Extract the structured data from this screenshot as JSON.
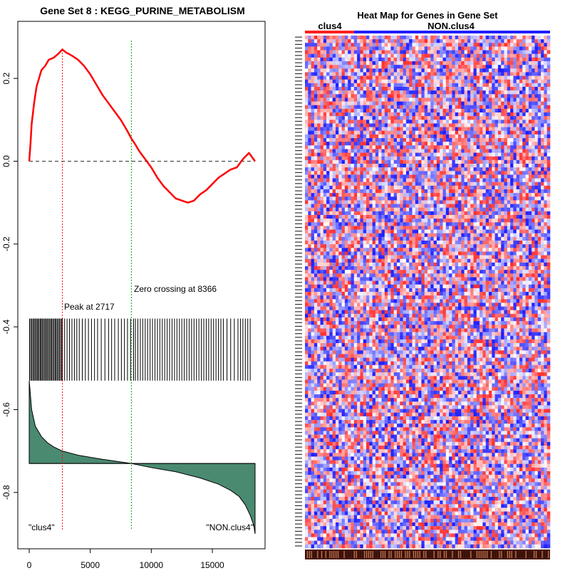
{
  "chart_data": [
    {
      "type": "line",
      "title": "Gene Set  8 : KEGG_PURINE_METABOLISM",
      "xlim": [
        0,
        18500
      ],
      "ylim": [
        -0.9,
        0.3
      ],
      "x_ticks": [
        0,
        5000,
        10000,
        15000
      ],
      "x_tick_labels": [
        "0",
        "5000",
        "10000",
        "15000"
      ],
      "y_ticks": [
        0.2,
        0.0,
        -0.2,
        -0.4,
        -0.6,
        -0.8
      ],
      "y_tick_labels": [
        "0.2",
        "0.0",
        "-0.2",
        "-0.4",
        "-0.6",
        "-0.8"
      ],
      "running_es": {
        "color": "#ff0000",
        "x": [
          0,
          100,
          200,
          400,
          600,
          800,
          1000,
          1300,
          1600,
          2000,
          2400,
          2717,
          3000,
          3500,
          4000,
          4500,
          5000,
          5500,
          6000,
          6500,
          7000,
          7500,
          8000,
          8366,
          8700,
          9000,
          9500,
          10000,
          10500,
          11000,
          11500,
          12000,
          12500,
          13000,
          13500,
          14000,
          14500,
          15000,
          15500,
          16000,
          16500,
          17000,
          17500,
          18000,
          18500
        ],
        "y": [
          0.0,
          0.04,
          0.09,
          0.14,
          0.18,
          0.2,
          0.22,
          0.23,
          0.245,
          0.25,
          0.26,
          0.27,
          0.263,
          0.255,
          0.245,
          0.23,
          0.21,
          0.185,
          0.16,
          0.14,
          0.12,
          0.1,
          0.075,
          0.055,
          0.04,
          0.025,
          0.005,
          -0.015,
          -0.04,
          -0.06,
          -0.075,
          -0.09,
          -0.095,
          -0.1,
          -0.095,
          -0.08,
          -0.07,
          -0.055,
          -0.04,
          -0.03,
          -0.02,
          -0.015,
          0.005,
          0.02,
          0.0
        ]
      },
      "baseline": 0.0,
      "peak": {
        "x": 2717,
        "label": "Peak at 2717",
        "color": "#ff0000"
      },
      "zero_crossing": {
        "x": 8366,
        "label": "Zero crossing at 8366",
        "color": "#00aa00"
      },
      "hits": {
        "y_range": [
          -0.53,
          -0.38
        ],
        "x": [
          30,
          120,
          210,
          300,
          390,
          470,
          560,
          650,
          720,
          810,
          900,
          980,
          1060,
          1150,
          1240,
          1330,
          1410,
          1500,
          1590,
          1680,
          1770,
          1850,
          1940,
          2030,
          2120,
          2200,
          2290,
          2380,
          2470,
          2560,
          2650,
          2717,
          2900,
          3100,
          3300,
          3500,
          3700,
          3900,
          4100,
          4350,
          4600,
          4850,
          5100,
          5350,
          5600,
          5900,
          6200,
          6500,
          6750,
          7000,
          7300,
          7550,
          7800,
          8050,
          8300,
          8550,
          8700,
          8900,
          9100,
          9300,
          9500,
          9700,
          9900,
          10100,
          10300,
          10500,
          10700,
          10900,
          11100,
          11300,
          11500,
          11700,
          11900,
          12100,
          12300,
          12500,
          12700,
          12900,
          13100,
          13300,
          13500,
          13700,
          13900,
          14100,
          14300,
          14500,
          14700,
          14900,
          15100,
          15300,
          15500,
          15700,
          15900,
          16200,
          16500,
          16800,
          17100,
          17300,
          17500,
          17700,
          17900,
          18100
        ]
      },
      "ranked_metric": {
        "fill": "#4a8a70",
        "baseline": -0.73,
        "x": [
          0,
          200,
          500,
          1000,
          1500,
          2000,
          2717,
          4000,
          6000,
          8366,
          10000,
          12000,
          14000,
          15500,
          16500,
          17200,
          17700,
          18100,
          18400,
          18500
        ],
        "y": [
          -0.53,
          -0.6,
          -0.64,
          -0.665,
          -0.68,
          -0.69,
          -0.7,
          -0.71,
          -0.72,
          -0.73,
          -0.74,
          -0.75,
          -0.765,
          -0.78,
          -0.795,
          -0.81,
          -0.83,
          -0.855,
          -0.88,
          -0.9
        ]
      },
      "left_label": "\"clus4\"",
      "right_label": "\"NON.clus4\""
    },
    {
      "type": "heatmap",
      "title": "Heat Map for Genes in Gene Set",
      "groups": [
        {
          "label": "clus4",
          "fraction": 0.2,
          "color": "#ff2020"
        },
        {
          "label": "NON.clus4",
          "fraction": 0.8,
          "color": "#2020ff"
        }
      ],
      "columns": 80,
      "rows": 140
    }
  ]
}
